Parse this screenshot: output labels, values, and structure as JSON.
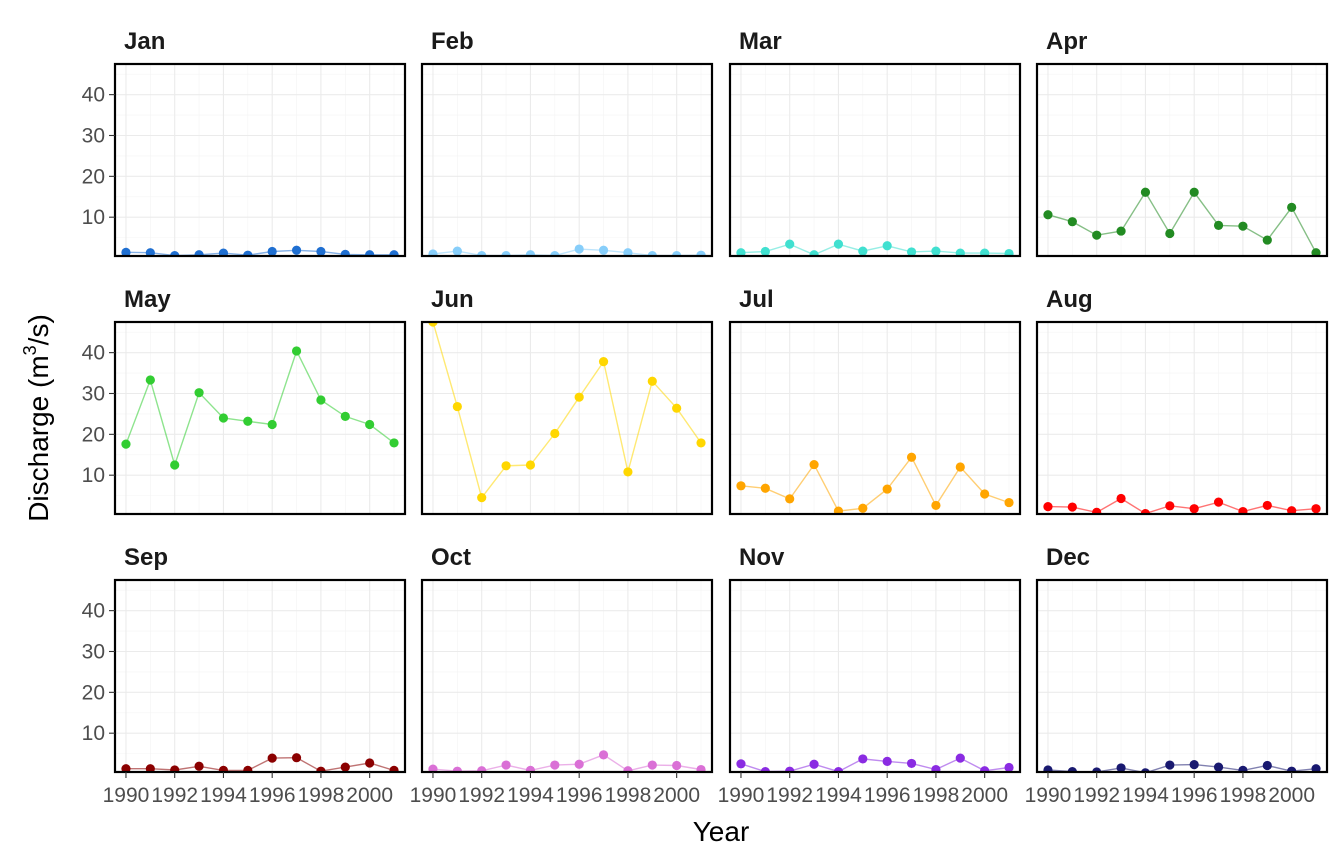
{
  "chart_data": {
    "type": "line",
    "facet": "month",
    "xlabel": "Year",
    "ylabel": "Discharge (m",
    "ylabel_sup": "3",
    "ylabel_tail": "/s)",
    "x": [
      1990,
      1991,
      1992,
      1993,
      1994,
      1995,
      1996,
      1997,
      1998,
      1999,
      2000,
      2001
    ],
    "xticks": [
      1990,
      1992,
      1994,
      1996,
      1998,
      2000
    ],
    "yticks": [
      10,
      20,
      30,
      40
    ],
    "ylim": [
      0.5,
      47.5
    ],
    "xlim": [
      1989.55,
      2001.45
    ],
    "grid": true,
    "legend": "none",
    "series": [
      {
        "name": "Jan",
        "color": "#1f6fd1",
        "values": [
          1.4,
          1.3,
          0.6,
          0.8,
          1.2,
          0.7,
          1.6,
          1.9,
          1.6,
          0.9,
          0.8,
          0.8
        ]
      },
      {
        "name": "Feb",
        "color": "#87cefa",
        "values": [
          1.0,
          1.7,
          0.6,
          0.6,
          0.8,
          0.6,
          2.2,
          1.9,
          1.3,
          0.6,
          0.6,
          0.7
        ]
      },
      {
        "name": "Mar",
        "color": "#40e0d0",
        "values": [
          1.3,
          1.6,
          3.4,
          0.8,
          3.4,
          1.7,
          3.0,
          1.5,
          1.7,
          1.2,
          1.2,
          1.1
        ]
      },
      {
        "name": "Apr",
        "color": "#228b22",
        "values": [
          10.6,
          8.9,
          5.6,
          6.6,
          16.1,
          6.0,
          16.1,
          8.0,
          7.8,
          4.4,
          12.4,
          1.3
        ]
      },
      {
        "name": "May",
        "color": "#32cd32",
        "values": [
          17.6,
          33.3,
          12.5,
          30.2,
          24.0,
          23.2,
          22.4,
          40.4,
          28.4,
          24.4,
          22.4,
          17.9
        ]
      },
      {
        "name": "Jun",
        "color": "#ffd700",
        "values": [
          47.5,
          26.8,
          4.5,
          12.3,
          12.5,
          20.2,
          29.1,
          37.8,
          10.8,
          33.0,
          26.4,
          17.9
        ]
      },
      {
        "name": "Jul",
        "color": "#ffa500",
        "values": [
          7.4,
          6.8,
          4.2,
          12.6,
          1.2,
          1.9,
          6.6,
          14.4,
          2.6,
          12.0,
          5.4,
          3.3
        ]
      },
      {
        "name": "Aug",
        "color": "#ff0000",
        "values": [
          2.3,
          2.2,
          0.9,
          4.3,
          0.6,
          2.5,
          1.8,
          3.4,
          1.1,
          2.6,
          1.3,
          1.8
        ]
      },
      {
        "name": "Sep",
        "color": "#8b0000",
        "values": [
          1.3,
          1.3,
          1.0,
          1.9,
          0.9,
          0.9,
          3.9,
          4.0,
          0.7,
          1.7,
          2.7,
          0.9
        ]
      },
      {
        "name": "Oct",
        "color": "#da70d6",
        "values": [
          1.2,
          0.7,
          0.8,
          2.2,
          0.9,
          2.2,
          2.4,
          4.7,
          0.8,
          2.2,
          2.1,
          1.1
        ]
      },
      {
        "name": "Nov",
        "color": "#8a2be2",
        "values": [
          2.5,
          0.6,
          0.7,
          2.4,
          0.6,
          3.7,
          3.1,
          2.6,
          1.1,
          3.9,
          0.8,
          1.6
        ]
      },
      {
        "name": "Dec",
        "color": "#191970",
        "values": [
          1.0,
          0.6,
          0.5,
          1.5,
          0.3,
          2.2,
          2.3,
          1.7,
          0.9,
          2.1,
          0.7,
          1.3
        ]
      }
    ]
  }
}
